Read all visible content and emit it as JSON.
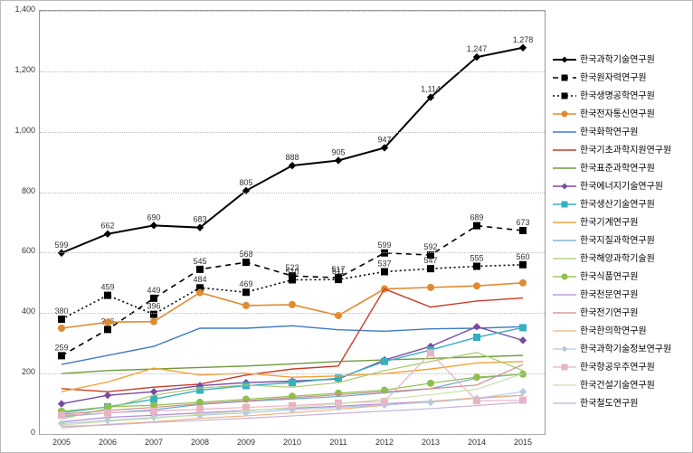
{
  "chart": {
    "type": "line",
    "xlim": [
      2005,
      2015
    ],
    "ylim": [
      0,
      1400
    ],
    "ytick_step": 200,
    "categories": [
      2005,
      2006,
      2007,
      2008,
      2009,
      2010,
      2011,
      2012,
      2013,
      2014,
      2015
    ],
    "background_color": "#ffffff",
    "grid_color": "#bbbbbb",
    "label_fontsize": 9,
    "datalabel_fontsize": 9,
    "series": [
      {
        "name": "한국과학기술연구원",
        "color": "#000000",
        "dash": "",
        "marker": "diamond",
        "values": [
          599,
          662,
          690,
          683,
          805,
          888,
          905,
          947,
          1114,
          1247,
          1278
        ],
        "labels": true,
        "lw": 2
      },
      {
        "name": "한국원자력연구원",
        "color": "#000000",
        "dash": "6,5",
        "marker": "square",
        "values": [
          259,
          346,
          449,
          545,
          568,
          523,
          517,
          599,
          592,
          689,
          673
        ],
        "labels": true,
        "lw": 1.6
      },
      {
        "name": "한국생명공학연구원",
        "color": "#000000",
        "dash": "2,3",
        "marker": "square",
        "values": [
          380,
          459,
          396,
          484,
          469,
          510,
          511,
          537,
          547,
          555,
          560
        ],
        "labels": true,
        "lw": 1.6
      },
      {
        "name": "한국전자통신연구원",
        "color": "#e08b30",
        "dash": "",
        "marker": "circle",
        "values": [
          350,
          370,
          372,
          468,
          425,
          428,
          392,
          480,
          485,
          490,
          500
        ],
        "labels": false,
        "lw": 1.6
      },
      {
        "name": "한국화학연구원",
        "color": "#3d7ac6",
        "dash": "",
        "marker": "none",
        "values": [
          230,
          260,
          290,
          350,
          350,
          358,
          345,
          340,
          348,
          350,
          355
        ],
        "labels": false,
        "lw": 1.4
      },
      {
        "name": "한국기초과학지원연구원",
        "color": "#cc3a2a",
        "dash": "",
        "marker": "none",
        "values": [
          150,
          140,
          155,
          165,
          195,
          215,
          225,
          480,
          420,
          440,
          450
        ],
        "labels": false,
        "lw": 1.4
      },
      {
        "name": "한국표준과학연구원",
        "color": "#6f9a3e",
        "dash": "",
        "marker": "none",
        "values": [
          200,
          210,
          215,
          220,
          225,
          232,
          240,
          245,
          250,
          255,
          260
        ],
        "labels": false,
        "lw": 1.4
      },
      {
        "name": "한국에너지기술연구원",
        "color": "#7a4aa2",
        "dash": "",
        "marker": "diamond",
        "values": [
          100,
          128,
          140,
          160,
          170,
          175,
          182,
          245,
          290,
          355,
          310
        ],
        "labels": false,
        "lw": 1.4
      },
      {
        "name": "한국생산기술연구원",
        "color": "#36b0c0",
        "dash": "",
        "marker": "square",
        "values": [
          70,
          90,
          115,
          145,
          160,
          170,
          185,
          240,
          278,
          320,
          352
        ],
        "labels": false,
        "lw": 1.4
      },
      {
        "name": "한국기계연구원",
        "color": "#f0a23a",
        "dash": "",
        "marker": "none",
        "values": [
          140,
          172,
          218,
          195,
          201,
          188,
          192,
          200,
          215,
          235,
          240
        ],
        "labels": false,
        "lw": 1.4
      },
      {
        "name": "한국지질과학연구원",
        "color": "#6aa7d6",
        "dash": "",
        "marker": "none",
        "values": [
          58,
          70,
          80,
          98,
          108,
          116,
          124,
          136,
          150,
          185,
          198
        ],
        "labels": false,
        "lw": 1.2
      },
      {
        "name": "한국해양과학기술원",
        "color": "#a6c96a",
        "dash": "",
        "marker": "none",
        "values": [
          50,
          85,
          128,
          152,
          162,
          155,
          170,
          210,
          240,
          270,
          210
        ],
        "labels": false,
        "lw": 1.2
      },
      {
        "name": "한국식품연구원",
        "color": "#8fbf4e",
        "dash": "",
        "marker": "circle",
        "values": [
          75,
          90,
          95,
          105,
          115,
          125,
          135,
          145,
          168,
          188,
          198
        ],
        "labels": false,
        "lw": 1.2
      },
      {
        "name": "한국천문연구원",
        "color": "#b08bd8",
        "dash": "",
        "marker": "none",
        "values": [
          40,
          55,
          62,
          70,
          78,
          85,
          92,
          100,
          108,
          118,
          128
        ],
        "labels": false,
        "lw": 1.2
      },
      {
        "name": "한국전기연구원",
        "color": "#d08a8a",
        "dash": "",
        "marker": "none",
        "values": [
          65,
          78,
          88,
          100,
          110,
          120,
          130,
          140,
          150,
          162,
          230
        ],
        "labels": false,
        "lw": 1.2
      },
      {
        "name": "한국한의학연구원",
        "color": "#f2b07a",
        "dash": "",
        "marker": "none",
        "values": [
          20,
          32,
          40,
          52,
          60,
          70,
          82,
          95,
          108,
          120,
          128
        ],
        "labels": false,
        "lw": 1.2
      },
      {
        "name": "한국과학기술정보연구원",
        "color": "#b4cbe0",
        "dash": "",
        "marker": "diamond",
        "values": [
          35,
          45,
          55,
          62,
          70,
          80,
          88,
          96,
          105,
          118,
          140
        ],
        "labels": false,
        "lw": 1.2
      },
      {
        "name": "한국항공우주연구원",
        "color": "#e8b4c4",
        "dash": "",
        "marker": "square",
        "values": [
          62,
          70,
          76,
          82,
          88,
          94,
          102,
          108,
          268,
          110,
          112
        ],
        "labels": false,
        "lw": 1.2
      },
      {
        "name": "한국건설기술연구원",
        "color": "#c8e0a8",
        "dash": "",
        "marker": "none",
        "values": [
          30,
          42,
          52,
          65,
          76,
          88,
          100,
          115,
          130,
          148,
          200
        ],
        "labels": false,
        "lw": 1.2
      },
      {
        "name": "한국철도연구원",
        "color": "#c4b2d8",
        "dash": "",
        "marker": "none",
        "values": [
          25,
          30,
          38,
          45,
          52,
          60,
          68,
          76,
          84,
          94,
          105
        ],
        "labels": false,
        "lw": 1.2
      }
    ]
  }
}
